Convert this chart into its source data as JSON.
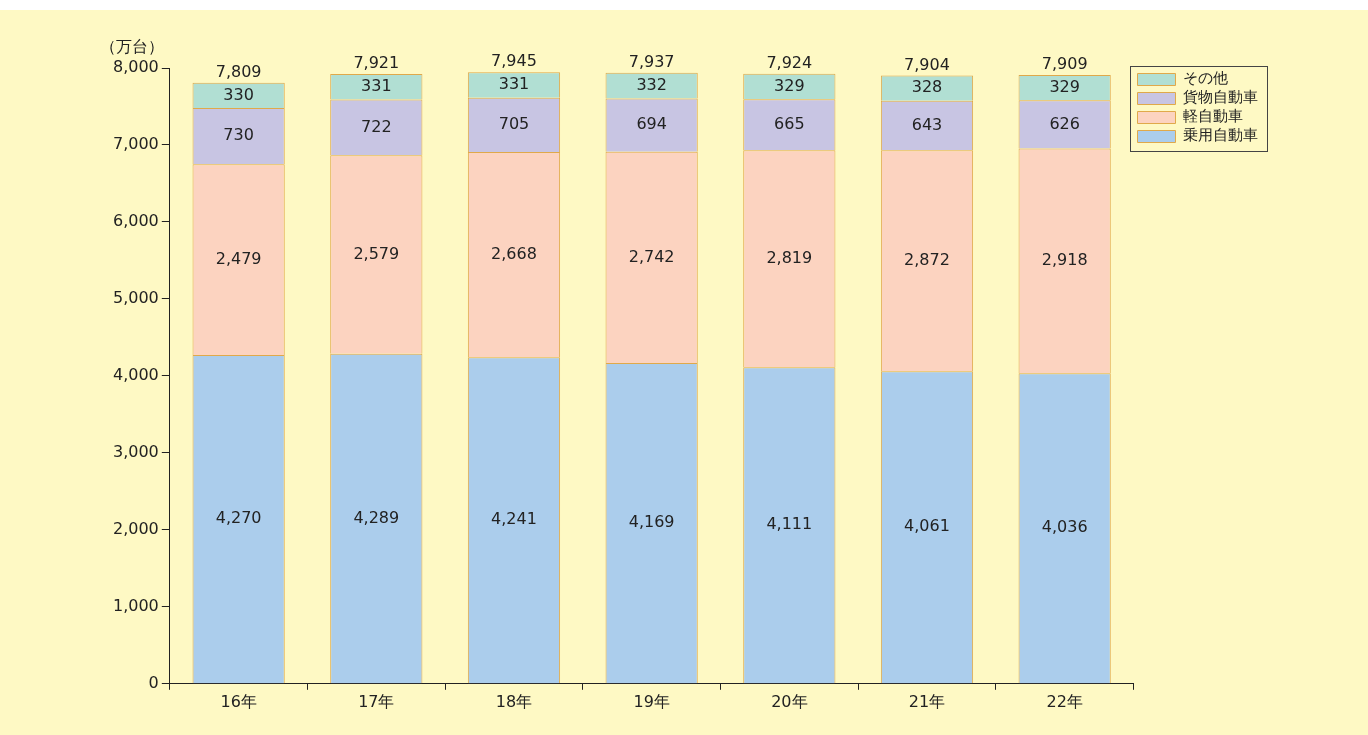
{
  "chart_data": {
    "type": "bar",
    "stacked": true,
    "ylabel": "（万台）",
    "categories": [
      "16年",
      "17年",
      "18年",
      "19年",
      "20年",
      "21年",
      "22年"
    ],
    "series": [
      {
        "name": "乗用自動車",
        "color": "#abcdec",
        "values": [
          4270,
          4289,
          4241,
          4169,
          4111,
          4061,
          4036
        ],
        "value_labels": [
          "4,270",
          "4,289",
          "4,241",
          "4,169",
          "4,111",
          "4,061",
          "4,036"
        ]
      },
      {
        "name": "軽自動車",
        "color": "#fcd3c0",
        "values": [
          2479,
          2579,
          2668,
          2742,
          2819,
          2872,
          2918
        ],
        "value_labels": [
          "2,479",
          "2,579",
          "2,668",
          "2,742",
          "2,819",
          "2,872",
          "2,918"
        ]
      },
      {
        "name": "貨物自動車",
        "color": "#c8c5e3",
        "values": [
          730,
          722,
          705,
          694,
          665,
          643,
          626
        ],
        "value_labels": [
          "730",
          "722",
          "705",
          "694",
          "665",
          "643",
          "626"
        ]
      },
      {
        "name": "その他",
        "color": "#b1dfd3",
        "values": [
          330,
          331,
          331,
          332,
          329,
          328,
          329
        ],
        "value_labels": [
          "330",
          "331",
          "331",
          "332",
          "329",
          "328",
          "329"
        ]
      }
    ],
    "totals": [
      "7,809",
      "7,921",
      "7,945",
      "7,937",
      "7,924",
      "7,904",
      "7,909"
    ],
    "ylim": [
      0,
      8000
    ],
    "yticks": [
      0,
      {
        "value": 1000,
        "label": "1,000"
      },
      {
        "value": 2000,
        "label": "2,000"
      },
      {
        "value": 3000,
        "label": "3,000"
      },
      {
        "value": 4000,
        "label": "4,000"
      },
      {
        "value": 5000,
        "label": "5,000"
      },
      {
        "value": 6000,
        "label": "6,000"
      },
      {
        "value": 7000,
        "label": "7,000"
      },
      {
        "value": 8000,
        "label": "8,000"
      }
    ],
    "grid": false,
    "legend": "top right"
  }
}
